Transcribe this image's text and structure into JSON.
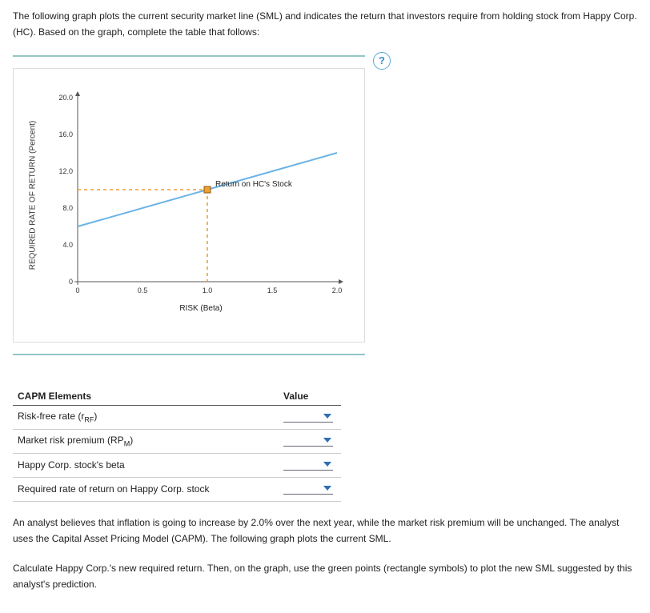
{
  "intro": "The following graph plots the current security market line (SML) and indicates the return that investors require from holding stock from Happy Corp. (HC). Based on the graph, complete the table that follows:",
  "help_glyph": "?",
  "chart": {
    "type": "line",
    "ylabel": "REQUIRED RATE OF RETURN (Percent)",
    "xlabel": "RISK (Beta)",
    "xlim": [
      0,
      2.0
    ],
    "ylim": [
      0,
      20.0
    ],
    "xticks": [
      0,
      0.5,
      1.0,
      1.5,
      2.0
    ],
    "yticks": [
      0,
      4.0,
      8.0,
      12.0,
      16.0,
      20.0
    ],
    "xtick_labels": [
      "0",
      "0.5",
      "1.0",
      "1.5",
      "2.0"
    ],
    "ytick_labels": [
      "0",
      "4.0",
      "8.0",
      "12.0",
      "16.0",
      "20.0"
    ],
    "tick_fontsize": 9,
    "label_fontsize": 10,
    "background_color": "#ffffff",
    "axis_color": "#555555",
    "sml_line": {
      "x": [
        0,
        2.0
      ],
      "y": [
        6.0,
        14.0
      ],
      "color": "#6bb3e6",
      "width": 2
    },
    "highlight": {
      "beta": 1.0,
      "ret": 10.0,
      "dash_color": "#f0a030",
      "dash_pattern": "4 4",
      "marker": {
        "shape": "square",
        "size": 8,
        "fill": "#f0a030",
        "stroke": "#8a5a10"
      },
      "label": "Return on HC's Stock"
    }
  },
  "table": {
    "header_element": "CAPM Elements",
    "header_value": "Value",
    "rows": [
      {
        "label_pre": "Risk-free rate (r",
        "sub": "RF",
        "label_post": ")"
      },
      {
        "label_pre": "Market risk premium (RP",
        "sub": "M",
        "label_post": ")"
      },
      {
        "label_pre": "Happy Corp. stock's beta",
        "sub": "",
        "label_post": ""
      },
      {
        "label_pre": "Required rate of return on Happy Corp. stock",
        "sub": "",
        "label_post": ""
      }
    ]
  },
  "para1": "An analyst believes that inflation is going to increase by 2.0% over the next year, while the market risk premium will be unchanged. The analyst uses the Capital Asset Pricing Model (CAPM). The following graph plots the current SML.",
  "para2": "Calculate Happy Corp.'s new required return. Then, on the graph, use the green points (rectangle symbols) to plot the new SML suggested by this analyst's prediction."
}
